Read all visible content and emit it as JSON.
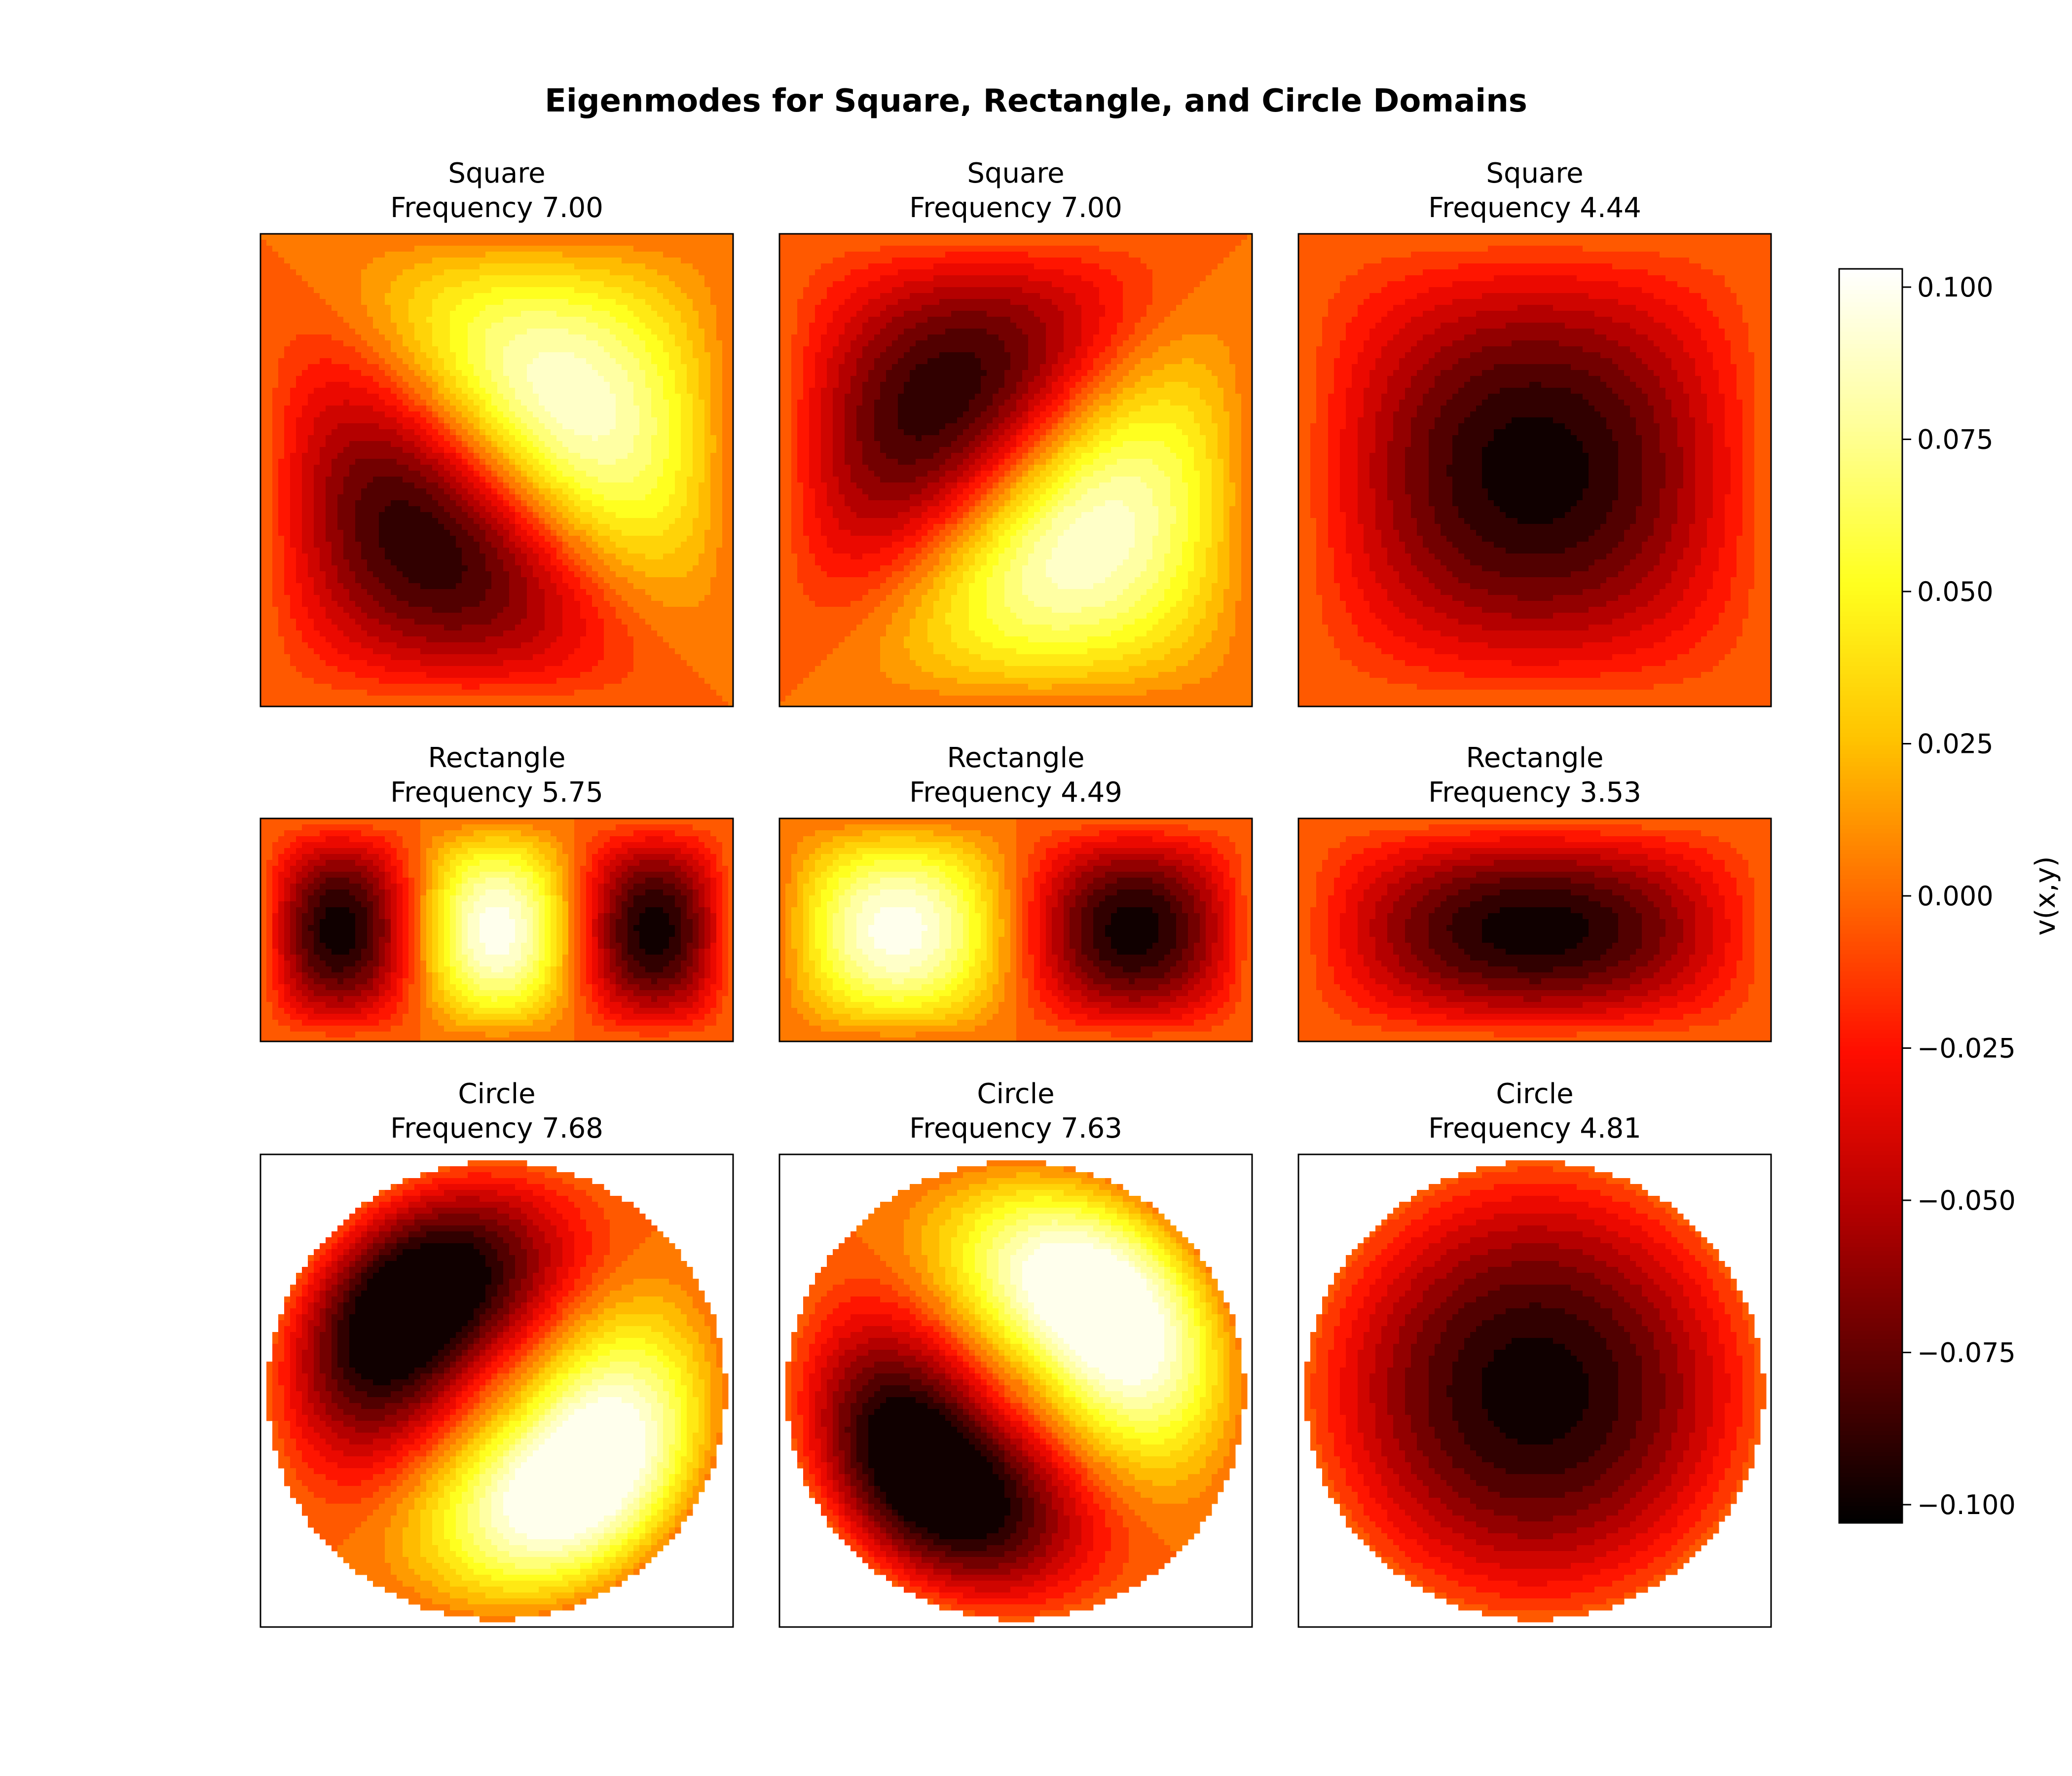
{
  "figure": {
    "title": "Eigenmodes for Square, Rectangle, and Circle Domains"
  },
  "colormap": {
    "name": "hot",
    "stops": [
      "#000000",
      "#5a0000",
      "#b40000",
      "#ff0d00",
      "#ff6a00",
      "#ffc300",
      "#ffff1f",
      "#ffff9a",
      "#ffffff"
    ]
  },
  "chart_data": [
    {
      "type": "heatmap",
      "domain": "Square",
      "title": "Square\nFrequency 7.00",
      "title_lines": [
        "Square",
        "Frequency 7.00"
      ],
      "frequency": 7.0,
      "extrema": [
        {
          "x": 0.26,
          "y": 0.68,
          "v": -0.1
        },
        {
          "x": 0.74,
          "y": 0.32,
          "v": 0.1
        }
      ]
    },
    {
      "type": "heatmap",
      "domain": "Square",
      "title": "Square\nFrequency 7.00",
      "title_lines": [
        "Square",
        "Frequency 7.00"
      ],
      "frequency": 7.0,
      "extrema": [
        {
          "x": 0.32,
          "y": 0.26,
          "v": -0.1
        },
        {
          "x": 0.68,
          "y": 0.74,
          "v": 0.1
        }
      ]
    },
    {
      "type": "heatmap",
      "domain": "Square",
      "title": "Square\nFrequency 4.44",
      "title_lines": [
        "Square",
        "Frequency 4.44"
      ],
      "frequency": 4.44,
      "extrema": [
        {
          "x": 0.5,
          "y": 0.5,
          "v": -0.1
        }
      ]
    },
    {
      "type": "heatmap",
      "domain": "Rectangle",
      "title": "Rectangle\nFrequency 5.75",
      "title_lines": [
        "Rectangle",
        "Frequency 5.75"
      ],
      "frequency": 5.75,
      "extrema": [
        {
          "x": 0.14,
          "y": 0.5,
          "v": -0.1
        },
        {
          "x": 0.5,
          "y": 0.5,
          "v": 0.1
        },
        {
          "x": 0.86,
          "y": 0.5,
          "v": -0.1
        }
      ]
    },
    {
      "type": "heatmap",
      "domain": "Rectangle",
      "title": "Rectangle\nFrequency 4.49",
      "title_lines": [
        "Rectangle",
        "Frequency 4.49"
      ],
      "frequency": 4.49,
      "extrema": [
        {
          "x": 0.24,
          "y": 0.5,
          "v": 0.1
        },
        {
          "x": 0.76,
          "y": 0.5,
          "v": -0.1
        }
      ]
    },
    {
      "type": "heatmap",
      "domain": "Rectangle",
      "title": "Rectangle\nFrequency 3.53",
      "title_lines": [
        "Rectangle",
        "Frequency 3.53"
      ],
      "frequency": 3.53,
      "extrema": [
        {
          "x": 0.5,
          "y": 0.5,
          "v": -0.1
        }
      ]
    },
    {
      "type": "heatmap",
      "domain": "Circle",
      "title": "Circle\nFrequency 7.68",
      "title_lines": [
        "Circle",
        "Frequency 7.68"
      ],
      "frequency": 7.68,
      "extrema": [
        {
          "x": 0.33,
          "y": 0.68,
          "v": -0.1
        },
        {
          "x": 0.69,
          "y": 0.33,
          "v": 0.1
        }
      ]
    },
    {
      "type": "heatmap",
      "domain": "Circle",
      "title": "Circle\nFrequency 7.63",
      "title_lines": [
        "Circle",
        "Frequency 7.63"
      ],
      "frequency": 7.63,
      "extrema": [
        {
          "x": 0.33,
          "y": 0.33,
          "v": -0.1
        },
        {
          "x": 0.69,
          "y": 0.68,
          "v": 0.1
        }
      ]
    },
    {
      "type": "heatmap",
      "domain": "Circle",
      "title": "Circle\nFrequency 4.81",
      "title_lines": [
        "Circle",
        "Frequency 4.81"
      ],
      "frequency": 4.81,
      "extrema": [
        {
          "x": 0.5,
          "y": 0.5,
          "v": -0.1
        }
      ]
    }
  ],
  "colorbar": {
    "label": "v(x,y)",
    "range": [
      -0.103,
      0.103
    ],
    "ticks": [
      0.1,
      0.075,
      0.05,
      0.025,
      0.0,
      -0.025,
      -0.05,
      -0.075,
      -0.1
    ],
    "tick_labels": [
      "0.100",
      "0.075",
      "0.050",
      "0.025",
      "0.000",
      "−0.025",
      "−0.050",
      "−0.075",
      "−0.100"
    ]
  }
}
